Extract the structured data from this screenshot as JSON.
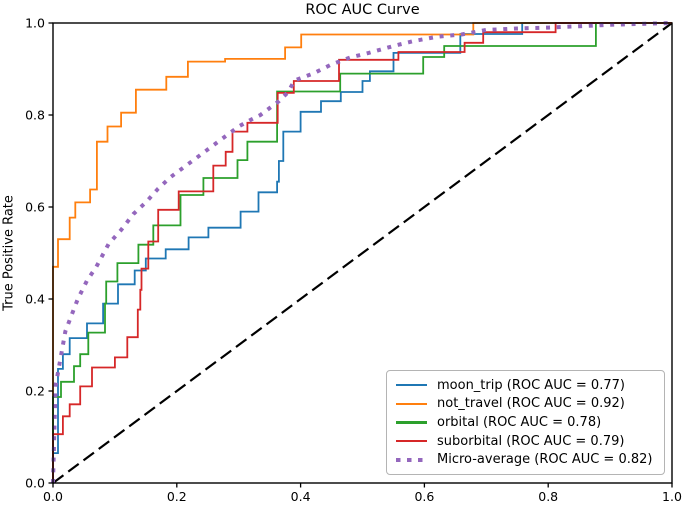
{
  "chart_data": {
    "type": "line",
    "subtype": "roc-step-curves",
    "title": "ROC AUC Curve",
    "xlabel": "",
    "ylabel": "True Positive Rate",
    "xlim": [
      0.0,
      1.0
    ],
    "ylim": [
      0.0,
      1.0
    ],
    "xticks": [
      "0.0",
      "0.2",
      "0.4",
      "0.6",
      "0.8",
      "1.0"
    ],
    "yticks": [
      "0.0",
      "0.2",
      "0.4",
      "0.6",
      "0.8",
      "1.0"
    ],
    "grid": false,
    "legend_position": "lower right",
    "diagonal": {
      "name": "chance-line",
      "style": "dashed",
      "color": "#000000",
      "from": [
        0,
        0
      ],
      "to": [
        1,
        1
      ]
    },
    "series": [
      {
        "name": "moon_trip (ROC AUC = 0.77)",
        "label": "moon_trip",
        "auc": 0.77,
        "color": "#1f77b4",
        "style": "solid",
        "linewidth": 1.8,
        "points": [
          [
            0,
            0
          ],
          [
            0,
            0.065
          ],
          [
            0.008,
            0.065
          ],
          [
            0.008,
            0.248
          ],
          [
            0.016,
            0.248
          ],
          [
            0.016,
            0.28
          ],
          [
            0.027,
            0.28
          ],
          [
            0.027,
            0.315
          ],
          [
            0.055,
            0.315
          ],
          [
            0.055,
            0.347
          ],
          [
            0.081,
            0.347
          ],
          [
            0.081,
            0.39
          ],
          [
            0.105,
            0.39
          ],
          [
            0.105,
            0.432
          ],
          [
            0.132,
            0.432
          ],
          [
            0.132,
            0.462
          ],
          [
            0.15,
            0.462
          ],
          [
            0.15,
            0.488
          ],
          [
            0.182,
            0.488
          ],
          [
            0.182,
            0.508
          ],
          [
            0.219,
            0.508
          ],
          [
            0.219,
            0.534
          ],
          [
            0.251,
            0.534
          ],
          [
            0.251,
            0.555
          ],
          [
            0.303,
            0.555
          ],
          [
            0.303,
            0.59
          ],
          [
            0.332,
            0.59
          ],
          [
            0.332,
            0.632
          ],
          [
            0.362,
            0.632
          ],
          [
            0.362,
            0.655
          ],
          [
            0.365,
            0.655
          ],
          [
            0.365,
            0.7
          ],
          [
            0.372,
            0.7
          ],
          [
            0.372,
            0.764
          ],
          [
            0.4,
            0.764
          ],
          [
            0.4,
            0.807
          ],
          [
            0.433,
            0.807
          ],
          [
            0.433,
            0.83
          ],
          [
            0.465,
            0.83
          ],
          [
            0.465,
            0.85
          ],
          [
            0.5,
            0.85
          ],
          [
            0.5,
            0.874
          ],
          [
            0.512,
            0.874
          ],
          [
            0.512,
            0.895
          ],
          [
            0.55,
            0.895
          ],
          [
            0.55,
            0.935
          ],
          [
            0.658,
            0.935
          ],
          [
            0.658,
            0.976
          ],
          [
            0.758,
            0.976
          ],
          [
            0.758,
            1
          ],
          [
            1,
            1
          ]
        ]
      },
      {
        "name": "not_travel (ROC AUC = 0.92)",
        "label": "not_travel",
        "auc": 0.92,
        "color": "#ff7f0e",
        "style": "solid",
        "linewidth": 1.8,
        "points": [
          [
            0,
            0
          ],
          [
            0,
            0.47
          ],
          [
            0.008,
            0.47
          ],
          [
            0.008,
            0.53
          ],
          [
            0.027,
            0.53
          ],
          [
            0.027,
            0.577
          ],
          [
            0.036,
            0.577
          ],
          [
            0.036,
            0.61
          ],
          [
            0.06,
            0.61
          ],
          [
            0.06,
            0.638
          ],
          [
            0.071,
            0.638
          ],
          [
            0.071,
            0.742
          ],
          [
            0.088,
            0.742
          ],
          [
            0.088,
            0.775
          ],
          [
            0.11,
            0.775
          ],
          [
            0.11,
            0.805
          ],
          [
            0.134,
            0.805
          ],
          [
            0.134,
            0.855
          ],
          [
            0.183,
            0.855
          ],
          [
            0.183,
            0.883
          ],
          [
            0.218,
            0.883
          ],
          [
            0.218,
            0.916
          ],
          [
            0.278,
            0.916
          ],
          [
            0.278,
            0.922
          ],
          [
            0.375,
            0.922
          ],
          [
            0.375,
            0.947
          ],
          [
            0.401,
            0.947
          ],
          [
            0.401,
            0.975
          ],
          [
            0.679,
            0.975
          ],
          [
            0.679,
            1
          ],
          [
            1,
            1
          ]
        ]
      },
      {
        "name": "orbital (ROC AUC = 0.78)",
        "label": "orbital",
        "auc": 0.78,
        "color": "#2ca02c",
        "style": "solid",
        "linewidth": 1.8,
        "points": [
          [
            0,
            0
          ],
          [
            0,
            0.187
          ],
          [
            0.013,
            0.187
          ],
          [
            0.013,
            0.22
          ],
          [
            0.034,
            0.22
          ],
          [
            0.034,
            0.254
          ],
          [
            0.044,
            0.254
          ],
          [
            0.044,
            0.28
          ],
          [
            0.057,
            0.28
          ],
          [
            0.057,
            0.327
          ],
          [
            0.084,
            0.327
          ],
          [
            0.084,
            0.39
          ],
          [
            0.086,
            0.39
          ],
          [
            0.086,
            0.438
          ],
          [
            0.104,
            0.438
          ],
          [
            0.104,
            0.478
          ],
          [
            0.138,
            0.478
          ],
          [
            0.138,
            0.518
          ],
          [
            0.162,
            0.518
          ],
          [
            0.162,
            0.56
          ],
          [
            0.206,
            0.56
          ],
          [
            0.206,
            0.626
          ],
          [
            0.243,
            0.626
          ],
          [
            0.243,
            0.663
          ],
          [
            0.298,
            0.663
          ],
          [
            0.298,
            0.702
          ],
          [
            0.314,
            0.702
          ],
          [
            0.314,
            0.742
          ],
          [
            0.362,
            0.742
          ],
          [
            0.362,
            0.851
          ],
          [
            0.464,
            0.851
          ],
          [
            0.464,
            0.89
          ],
          [
            0.598,
            0.89
          ],
          [
            0.598,
            0.926
          ],
          [
            0.632,
            0.926
          ],
          [
            0.632,
            0.95
          ],
          [
            0.877,
            0.95
          ],
          [
            0.877,
            1
          ],
          [
            1,
            1
          ]
        ]
      },
      {
        "name": "suborbital (ROC AUC = 0.79)",
        "label": "suborbital",
        "auc": 0.79,
        "color": "#d62728",
        "style": "solid",
        "linewidth": 1.8,
        "points": [
          [
            0,
            0
          ],
          [
            0,
            0.106
          ],
          [
            0.016,
            0.106
          ],
          [
            0.016,
            0.145
          ],
          [
            0.027,
            0.145
          ],
          [
            0.027,
            0.171
          ],
          [
            0.044,
            0.171
          ],
          [
            0.044,
            0.21
          ],
          [
            0.063,
            0.21
          ],
          [
            0.063,
            0.251
          ],
          [
            0.1,
            0.251
          ],
          [
            0.1,
            0.273
          ],
          [
            0.12,
            0.273
          ],
          [
            0.12,
            0.317
          ],
          [
            0.137,
            0.317
          ],
          [
            0.137,
            0.377
          ],
          [
            0.141,
            0.377
          ],
          [
            0.141,
            0.42
          ],
          [
            0.143,
            0.42
          ],
          [
            0.143,
            0.466
          ],
          [
            0.154,
            0.466
          ],
          [
            0.154,
            0.525
          ],
          [
            0.17,
            0.525
          ],
          [
            0.17,
            0.594
          ],
          [
            0.203,
            0.594
          ],
          [
            0.203,
            0.634
          ],
          [
            0.259,
            0.634
          ],
          [
            0.259,
            0.69
          ],
          [
            0.279,
            0.69
          ],
          [
            0.279,
            0.72
          ],
          [
            0.29,
            0.72
          ],
          [
            0.29,
            0.764
          ],
          [
            0.314,
            0.764
          ],
          [
            0.314,
            0.783
          ],
          [
            0.363,
            0.783
          ],
          [
            0.363,
            0.848
          ],
          [
            0.389,
            0.848
          ],
          [
            0.389,
            0.874
          ],
          [
            0.462,
            0.874
          ],
          [
            0.462,
            0.92
          ],
          [
            0.558,
            0.92
          ],
          [
            0.558,
            0.937
          ],
          [
            0.665,
            0.937
          ],
          [
            0.665,
            0.957
          ],
          [
            0.695,
            0.957
          ],
          [
            0.695,
            0.98
          ],
          [
            0.812,
            0.98
          ],
          [
            0.812,
            1
          ],
          [
            1,
            1
          ]
        ]
      },
      {
        "name": "Micro-average (ROC AUC = 0.82)",
        "label": "Micro-average",
        "auc": 0.82,
        "color": "#9467bd",
        "style": "dotted",
        "linewidth": 4,
        "points": [
          [
            0,
            0
          ],
          [
            0.004,
            0.21
          ],
          [
            0.02,
            0.33
          ],
          [
            0.04,
            0.4
          ],
          [
            0.055,
            0.44
          ],
          [
            0.07,
            0.47
          ],
          [
            0.09,
            0.52
          ],
          [
            0.11,
            0.55
          ],
          [
            0.13,
            0.585
          ],
          [
            0.15,
            0.61
          ],
          [
            0.17,
            0.64
          ],
          [
            0.19,
            0.665
          ],
          [
            0.21,
            0.685
          ],
          [
            0.23,
            0.705
          ],
          [
            0.26,
            0.735
          ],
          [
            0.28,
            0.755
          ],
          [
            0.3,
            0.775
          ],
          [
            0.32,
            0.79
          ],
          [
            0.335,
            0.8
          ],
          [
            0.35,
            0.815
          ],
          [
            0.365,
            0.83
          ],
          [
            0.38,
            0.85
          ],
          [
            0.39,
            0.875
          ],
          [
            0.42,
            0.89
          ],
          [
            0.45,
            0.91
          ],
          [
            0.48,
            0.925
          ],
          [
            0.51,
            0.935
          ],
          [
            0.55,
            0.95
          ],
          [
            0.58,
            0.96
          ],
          [
            0.62,
            0.97
          ],
          [
            0.66,
            0.975
          ],
          [
            0.7,
            0.985
          ],
          [
            0.75,
            0.988
          ],
          [
            0.8,
            0.99
          ],
          [
            0.85,
            0.993
          ],
          [
            0.9,
            0.996
          ],
          [
            0.95,
            0.998
          ],
          [
            1,
            1
          ]
        ]
      }
    ]
  }
}
